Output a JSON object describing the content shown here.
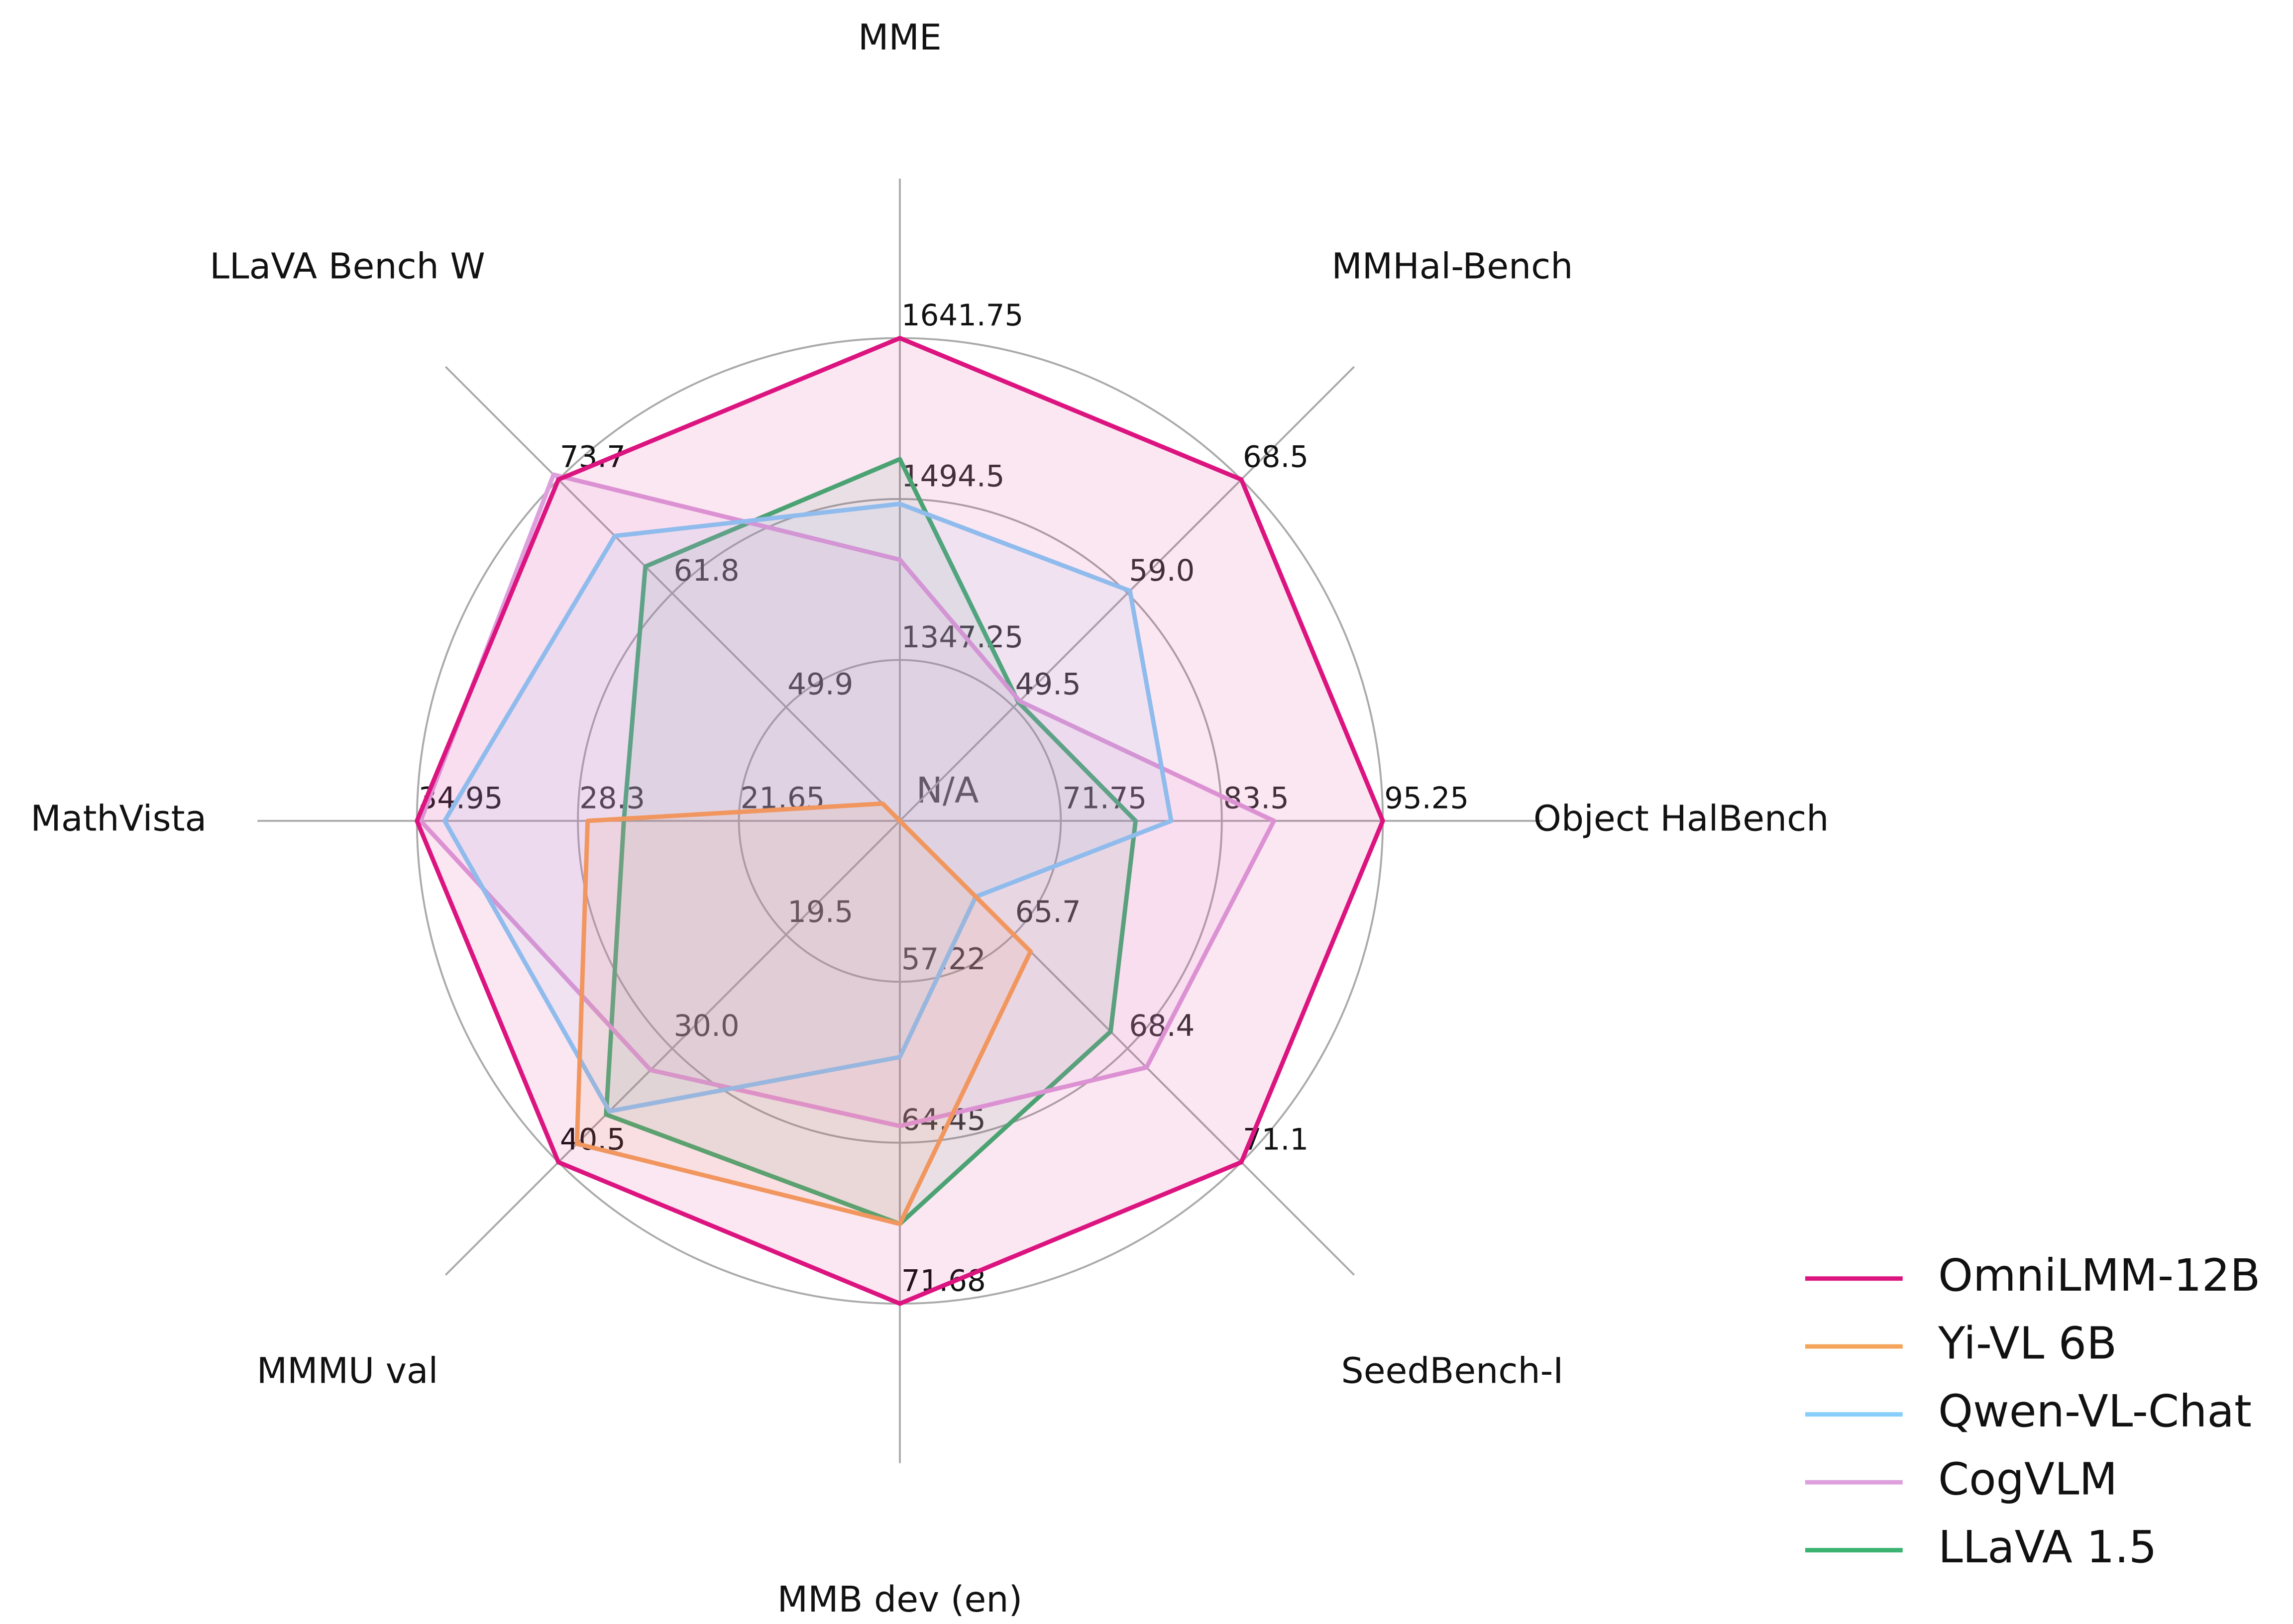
{
  "chart_data": {
    "type": "radar",
    "center_label": "N/A",
    "axes": [
      {
        "name": "MME",
        "lim": [
          1200,
          1641.75
        ],
        "ticks": [
          1347.25,
          1494.5,
          1641.75
        ]
      },
      {
        "name": "MMHal-Bench",
        "lim": [
          40,
          68.5
        ],
        "ticks": [
          49.5,
          {
            "value": 59,
            "label": "59.0"
          },
          68.5
        ]
      },
      {
        "name": "Object HalBench",
        "lim": [
          60,
          95.25
        ],
        "ticks": [
          71.75,
          83.5,
          95.25
        ]
      },
      {
        "name": "SeedBench-I",
        "lim": [
          63,
          71.1
        ],
        "ticks": [
          65.7,
          68.4,
          71.1
        ]
      },
      {
        "name": "MMB dev (en)",
        "lim": [
          49.99,
          71.68
        ],
        "ticks": [
          57.22,
          64.45,
          71.68
        ]
      },
      {
        "name": "MMMU val",
        "lim": [
          9,
          40.5
        ],
        "ticks": [
          19.5,
          {
            "value": 30,
            "label": "30.0"
          },
          40.5
        ]
      },
      {
        "name": "MathVista",
        "lim": [
          15,
          34.95
        ],
        "ticks": [
          21.65,
          28.3,
          34.95
        ]
      },
      {
        "name": "LLaVA Bench W",
        "lim": [
          38,
          73.7
        ],
        "ticks": [
          49.9,
          61.8,
          73.7
        ]
      }
    ],
    "series": [
      {
        "name": "OmniLMM-12B",
        "color": "#dc1480",
        "values": [
          1641.75,
          68.5,
          95.25,
          71.1,
          71.68,
          40.5,
          34.95,
          73.7
        ]
      },
      {
        "name": "Yi-VL 6B",
        "color": "#f4a55c",
        "values": [
          1200,
          40,
          60,
          66.1,
          68.1,
          38.8,
          27.9,
          39.8
        ]
      },
      {
        "name": "Qwen-VL-Chat",
        "color": "#87cefa",
        "values": [
          1490,
          59.2,
          79.8,
          64.8,
          60.6,
          35.8,
          33.8,
          67.8
        ]
      },
      {
        "name": "CogVLM",
        "color": "#dda0dd",
        "values": [
          1439,
          50,
          87.3,
          68.85,
          63.7,
          32,
          34.8,
          74.2
        ]
      },
      {
        "name": "LLaVA 1.5",
        "color": "#3cb371",
        "values": [
          1531,
          49.9,
          77.2,
          68,
          68.1,
          36.1,
          26.4,
          64.6
        ]
      }
    ],
    "grid": true,
    "legend": "lower right"
  }
}
